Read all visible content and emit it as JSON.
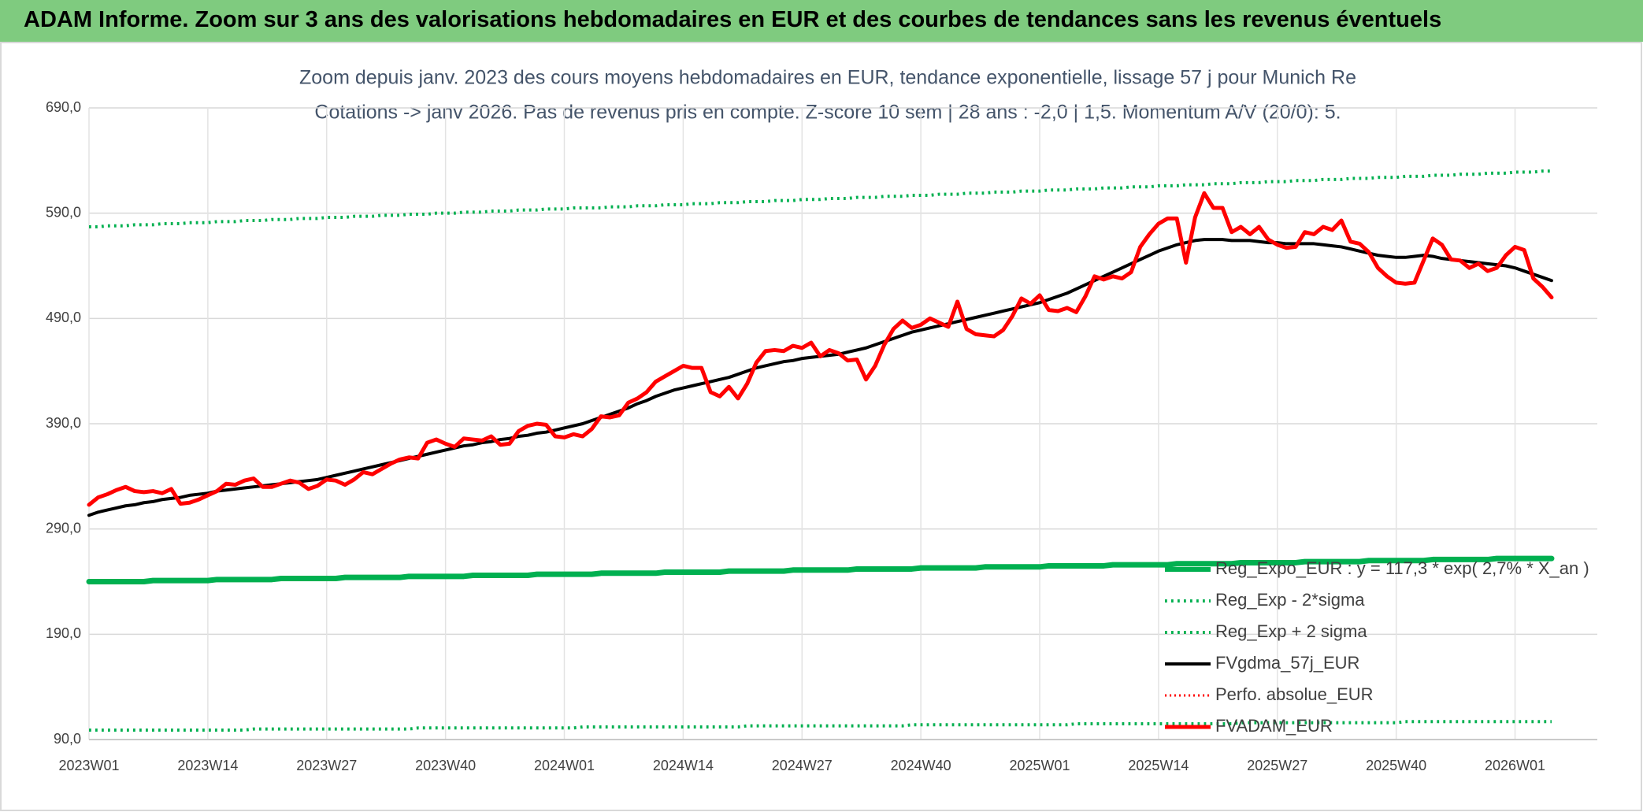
{
  "chart_data": {
    "type": "line",
    "title": "ADAM Informe. Zoom sur 3 ans des valorisations hebdomadaires en EUR et des courbes de tendances sans les revenus éventuels",
    "subtitle": [
      "Zoom depuis janv. 2023 des cours moyens hebdomadaires en EUR, tendance exponentielle, lissage 57 j pour Munich Re",
      "Cotations -> janv 2026. Pas de revenus pris en compte. Z-score 10 sem | 28 ans : -2,0 | 1,5. Momentum A/V (20/0): 5."
    ],
    "categories": [
      "2023W01",
      null,
      null,
      null,
      null,
      null,
      null,
      null,
      null,
      null,
      null,
      null,
      null,
      "2023W14",
      null,
      null,
      null,
      null,
      null,
      null,
      null,
      null,
      null,
      null,
      null,
      null,
      "2023W27",
      null,
      null,
      null,
      null,
      null,
      null,
      null,
      null,
      null,
      null,
      null,
      null,
      "2023W40",
      null,
      null,
      null,
      null,
      null,
      null,
      null,
      null,
      null,
      null,
      null,
      null,
      "2024W01",
      null,
      null,
      null,
      null,
      null,
      null,
      null,
      null,
      null,
      null,
      null,
      null,
      "2024W14",
      null,
      null,
      null,
      null,
      null,
      null,
      null,
      null,
      null,
      null,
      null,
      null,
      "2024W27",
      null,
      null,
      null,
      null,
      null,
      null,
      null,
      null,
      null,
      null,
      null,
      null,
      "2024W40",
      null,
      null,
      null,
      null,
      null,
      null,
      null,
      null,
      null,
      null,
      null,
      null,
      "2025W01",
      null,
      null,
      null,
      null,
      null,
      null,
      null,
      null,
      null,
      null,
      null,
      null,
      "2025W14",
      null,
      null,
      null,
      null,
      null,
      null,
      null,
      null,
      null,
      null,
      null,
      null,
      "2025W27",
      null,
      null,
      null,
      null,
      null,
      null,
      null,
      null,
      null,
      null,
      null,
      null,
      "2025W40",
      null,
      null,
      null,
      null,
      null,
      null,
      null,
      null,
      null,
      null,
      null,
      null,
      "2026W01",
      null,
      null,
      null,
      null
    ],
    "series": [
      {
        "name": "Reg_Expo_EUR : y = 117,3 * exp( 2,7% *  X_an )",
        "color": "#00b050",
        "style": "solid",
        "width": 7,
        "values": [
          240,
          240,
          240,
          240,
          240,
          240,
          240,
          241,
          241,
          241,
          241,
          241,
          241,
          241,
          242,
          242,
          242,
          242,
          242,
          242,
          242,
          243,
          243,
          243,
          243,
          243,
          243,
          243,
          244,
          244,
          244,
          244,
          244,
          244,
          244,
          245,
          245,
          245,
          245,
          245,
          245,
          245,
          246,
          246,
          246,
          246,
          246,
          246,
          246,
          247,
          247,
          247,
          247,
          247,
          247,
          247,
          248,
          248,
          248,
          248,
          248,
          248,
          248,
          249,
          249,
          249,
          249,
          249,
          249,
          249,
          250,
          250,
          250,
          250,
          250,
          250,
          250,
          251,
          251,
          251,
          251,
          251,
          251,
          251,
          252,
          252,
          252,
          252,
          252,
          252,
          252,
          253,
          253,
          253,
          253,
          253,
          253,
          253,
          254,
          254,
          254,
          254,
          254,
          254,
          254,
          255,
          255,
          255,
          255,
          255,
          255,
          255,
          256,
          256,
          256,
          256,
          256,
          256,
          256,
          257,
          257,
          257,
          257,
          257,
          257,
          257,
          258,
          258,
          258,
          258,
          258,
          258,
          258,
          259,
          259,
          259,
          259,
          259,
          259,
          259,
          260,
          260,
          260,
          260,
          260,
          260,
          260,
          261,
          261,
          261,
          261,
          261,
          261,
          261,
          262,
          262,
          262,
          262,
          262,
          262,
          262
        ]
      },
      {
        "name": "Reg_Exp - 2*sigma",
        "color": "#00b050",
        "style": "dotted",
        "width": 4,
        "values": [
          99,
          99,
          99,
          99,
          99,
          99,
          99,
          99,
          99,
          99,
          99,
          99,
          99,
          99,
          99,
          99,
          99,
          99,
          100,
          100,
          100,
          100,
          100,
          100,
          100,
          100,
          100,
          100,
          100,
          100,
          100,
          100,
          100,
          100,
          100,
          100,
          101,
          101,
          101,
          101,
          101,
          101,
          101,
          101,
          101,
          101,
          101,
          101,
          101,
          101,
          101,
          101,
          101,
          101,
          102,
          102,
          102,
          102,
          102,
          102,
          102,
          102,
          102,
          102,
          102,
          102,
          102,
          102,
          102,
          102,
          102,
          102,
          103,
          103,
          103,
          103,
          103,
          103,
          103,
          103,
          103,
          103,
          103,
          103,
          103,
          103,
          103,
          103,
          103,
          103,
          104,
          104,
          104,
          104,
          104,
          104,
          104,
          104,
          104,
          104,
          104,
          104,
          104,
          104,
          104,
          104,
          104,
          104,
          105,
          105,
          105,
          105,
          105,
          105,
          105,
          105,
          105,
          105,
          105,
          105,
          105,
          105,
          105,
          105,
          105,
          105,
          106,
          106,
          106,
          106,
          106,
          106,
          106,
          106,
          106,
          106,
          106,
          106,
          106,
          106,
          106,
          106,
          106,
          106,
          107,
          107,
          107,
          107,
          107,
          107,
          107,
          107,
          107,
          107,
          107,
          107,
          107,
          107,
          107,
          107,
          107
        ]
      },
      {
        "name": "Reg_Exp + 2 sigma",
        "color": "#00b050",
        "style": "dotted",
        "width": 4,
        "values": [
          577,
          577,
          578,
          578,
          578,
          579,
          579,
          579,
          580,
          580,
          580,
          581,
          581,
          581,
          582,
          582,
          582,
          583,
          583,
          583,
          584,
          584,
          584,
          585,
          585,
          585,
          586,
          586,
          586,
          587,
          587,
          587,
          588,
          588,
          588,
          589,
          589,
          589,
          590,
          590,
          590,
          591,
          591,
          591,
          592,
          592,
          592,
          593,
          593,
          593,
          594,
          594,
          594,
          595,
          595,
          595,
          595,
          596,
          596,
          596,
          597,
          597,
          597,
          598,
          598,
          598,
          599,
          599,
          599,
          600,
          600,
          600,
          601,
          601,
          601,
          602,
          602,
          602,
          603,
          603,
          603,
          604,
          604,
          604,
          605,
          605,
          605,
          606,
          606,
          606,
          607,
          607,
          607,
          608,
          608,
          608,
          609,
          609,
          609,
          610,
          610,
          610,
          611,
          611,
          611,
          612,
          612,
          612,
          613,
          613,
          613,
          614,
          614,
          614,
          615,
          615,
          615,
          616,
          616,
          616,
          617,
          617,
          617,
          618,
          618,
          618,
          619,
          619,
          619,
          620,
          620,
          620,
          621,
          621,
          621,
          622,
          622,
          622,
          623,
          623,
          623,
          624,
          624,
          624,
          625,
          625,
          625,
          626,
          626,
          626,
          627,
          627,
          627,
          628,
          628,
          628,
          629,
          629,
          629,
          630,
          630
        ]
      },
      {
        "name": "FVgdma_57j_EUR",
        "color": "#000000",
        "style": "solid",
        "width": 4,
        "values": [
          303,
          306,
          308,
          310,
          312,
          313,
          315,
          316,
          318,
          319,
          320,
          322,
          323,
          324,
          326,
          327,
          328,
          329,
          330,
          331,
          332,
          333,
          334,
          335,
          336,
          337,
          339,
          341,
          343,
          345,
          347,
          349,
          351,
          353,
          355,
          357,
          359,
          361,
          363,
          365,
          367,
          369,
          370,
          372,
          373,
          375,
          376,
          378,
          379,
          381,
          382,
          384,
          386,
          388,
          390,
          393,
          396,
          399,
          402,
          405,
          409,
          412,
          416,
          419,
          422,
          424,
          426,
          428,
          430,
          432,
          434,
          437,
          440,
          443,
          445,
          447,
          449,
          450,
          452,
          453,
          454,
          455,
          456,
          458,
          460,
          462,
          465,
          468,
          471,
          474,
          477,
          479,
          481,
          483,
          485,
          487,
          489,
          491,
          493,
          495,
          497,
          499,
          501,
          503,
          505,
          508,
          511,
          514,
          518,
          522,
          526,
          530,
          534,
          538,
          542,
          546,
          550,
          554,
          557,
          560,
          562,
          564,
          565,
          565,
          565,
          564,
          564,
          564,
          563,
          562,
          562,
          561,
          561,
          561,
          561,
          560,
          559,
          558,
          556,
          554,
          552,
          550,
          549,
          548,
          548,
          549,
          550,
          549,
          547,
          546,
          545,
          544,
          543,
          542,
          541,
          540,
          538,
          535,
          532,
          529,
          526
        ]
      },
      {
        "name": "Perfo. absolue_EUR",
        "color": "#ff0000",
        "style": "dotted",
        "width": 3,
        "values": [
          null,
          null,
          null,
          null,
          null,
          null,
          null,
          null,
          null,
          null,
          null,
          null,
          null,
          null,
          null,
          null,
          null,
          null,
          null,
          null,
          null,
          null,
          null,
          null,
          null,
          null,
          null,
          null,
          null,
          null,
          null,
          null,
          null,
          null,
          null,
          null,
          null,
          null,
          null,
          null,
          null,
          null,
          null,
          null,
          null,
          null,
          null,
          null,
          null,
          null,
          null,
          null,
          null,
          null,
          null,
          null,
          null,
          null,
          null,
          null,
          null,
          null,
          null,
          null,
          null,
          null,
          null,
          null,
          null,
          null,
          null,
          null,
          null,
          null,
          null,
          null,
          null,
          null,
          null,
          null,
          null,
          null,
          null,
          null,
          null,
          null,
          null,
          null,
          null,
          null,
          null,
          null,
          null,
          null,
          null,
          null,
          null,
          null,
          null,
          null,
          null,
          null,
          null,
          null,
          null,
          null,
          null,
          null,
          null,
          null,
          null,
          null,
          null,
          null,
          null,
          null,
          null,
          null,
          null,
          null,
          null,
          null,
          null,
          null,
          null,
          null,
          null,
          null,
          null,
          null,
          null,
          null,
          null,
          null,
          null,
          null,
          null,
          null,
          null,
          null,
          null,
          null,
          null,
          null,
          null,
          null,
          null,
          null,
          null,
          null,
          null,
          null,
          null,
          null,
          null,
          null,
          null,
          null,
          null,
          null,
          null
        ]
      },
      {
        "name": "FVADAM_EUR",
        "color": "#ff0000",
        "style": "solid",
        "width": 5,
        "values": [
          313,
          320,
          323,
          327,
          330,
          326,
          325,
          326,
          324,
          328,
          314,
          315,
          318,
          322,
          326,
          333,
          332,
          336,
          338,
          330,
          330,
          333,
          336,
          334,
          328,
          331,
          337,
          336,
          332,
          337,
          344,
          342,
          347,
          352,
          356,
          358,
          357,
          372,
          375,
          371,
          368,
          376,
          375,
          374,
          378,
          370,
          371,
          383,
          388,
          390,
          389,
          378,
          377,
          380,
          378,
          385,
          397,
          396,
          398,
          410,
          414,
          420,
          430,
          435,
          440,
          445,
          443,
          443,
          420,
          416,
          425,
          414,
          428,
          448,
          459,
          460,
          459,
          464,
          462,
          467,
          454,
          460,
          457,
          450,
          451,
          432,
          445,
          465,
          480,
          488,
          481,
          484,
          490,
          486,
          482,
          506,
          480,
          475,
          474,
          473,
          479,
          492,
          509,
          504,
          512,
          498,
          497,
          500,
          496,
          511,
          530,
          527,
          530,
          528,
          534,
          558,
          570,
          580,
          585,
          585,
          543,
          586,
          609,
          595,
          595,
          572,
          577,
          570,
          577,
          565,
          560,
          557,
          558,
          572,
          570,
          577,
          574,
          583,
          563,
          561,
          553,
          538,
          530,
          524,
          523,
          524,
          545,
          566,
          560,
          546,
          545,
          538,
          542,
          535,
          538,
          550,
          558,
          555,
          528,
          520,
          510
        ]
      }
    ],
    "ylim": [
      90,
      690
    ],
    "yticks": [
      {
        "value": 90,
        "label": "90,0"
      },
      {
        "value": 190,
        "label": "190,0"
      },
      {
        "value": 290,
        "label": "290,0"
      },
      {
        "value": 390,
        "label": "390,0"
      },
      {
        "value": 490,
        "label": "490,0"
      },
      {
        "value": 590,
        "label": "590,0"
      },
      {
        "value": 690,
        "label": "690,0"
      }
    ],
    "grid": true,
    "legend": "bottom-right"
  }
}
